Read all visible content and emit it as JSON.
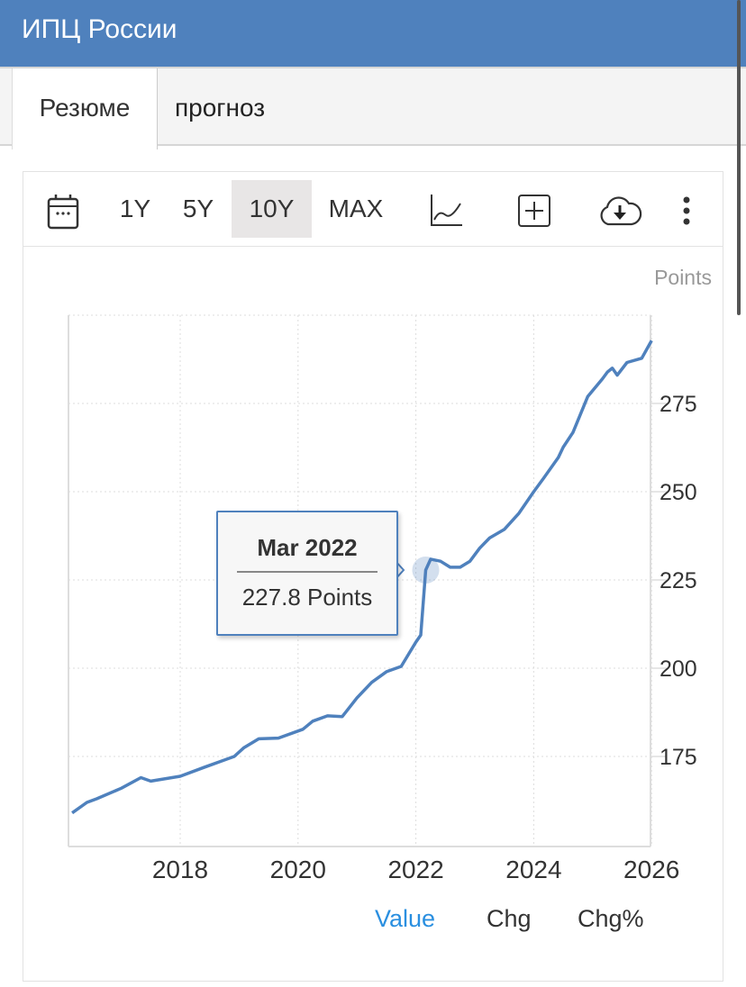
{
  "header": {
    "title": "ИПЦ России",
    "color": "#4f81bd"
  },
  "tabs": [
    {
      "label": "Резюме",
      "active": true
    },
    {
      "label": "прогноз",
      "active": false
    }
  ],
  "toolbar": {
    "ranges": [
      "1Y",
      "5Y",
      "10Y",
      "MAX"
    ],
    "selected": "10Y",
    "icons": [
      "calendar-icon",
      "line-chart-icon",
      "add-compare-icon",
      "cloud-download-icon",
      "more-vertical-icon"
    ]
  },
  "modes": [
    {
      "label": "Value",
      "active": true
    },
    {
      "label": "Chg",
      "active": false
    },
    {
      "label": "Chg%",
      "active": false
    }
  ],
  "tooltip": {
    "date": "Mar 2022",
    "value": "227.8 Points"
  },
  "chart_data": {
    "type": "line",
    "title": "",
    "unit_label": "Points",
    "xlabel": "",
    "ylabel": "",
    "x_ticks": [
      "2018",
      "2020",
      "2022",
      "2024",
      "2026"
    ],
    "y_ticks": [
      175,
      200,
      225,
      250,
      275
    ],
    "ylim": [
      150,
      300
    ],
    "xlim": [
      "2016-03",
      "2026-01"
    ],
    "grid": true,
    "line_color": "#4f81bd",
    "highlight": {
      "x": "2022-03",
      "y": 227.8
    },
    "series": [
      {
        "points": [
          [
            "2016-03",
            159.0
          ],
          [
            "2016-06",
            162.0
          ],
          [
            "2016-08",
            163.0
          ],
          [
            "2017-01",
            166.0
          ],
          [
            "2017-05",
            169.0
          ],
          [
            "2017-07",
            168.0
          ],
          [
            "2018-01",
            169.4
          ],
          [
            "2018-06",
            172.0
          ],
          [
            "2018-12",
            175.0
          ],
          [
            "2019-02",
            177.5
          ],
          [
            "2019-05",
            180.0
          ],
          [
            "2019-09",
            180.2
          ],
          [
            "2020-02",
            182.7
          ],
          [
            "2020-04",
            185.0
          ],
          [
            "2020-07",
            186.5
          ],
          [
            "2020-10",
            186.3
          ],
          [
            "2021-01",
            191.6
          ],
          [
            "2021-04",
            196.0
          ],
          [
            "2021-07",
            199.0
          ],
          [
            "2021-10",
            200.5
          ],
          [
            "2022-01",
            207.4
          ],
          [
            "2022-02",
            209.4
          ],
          [
            "2022-03",
            227.8
          ],
          [
            "2022-04",
            230.9
          ],
          [
            "2022-06",
            230.3
          ],
          [
            "2022-08",
            228.6
          ],
          [
            "2022-10",
            228.6
          ],
          [
            "2022-12",
            230.3
          ],
          [
            "2023-02",
            234.0
          ],
          [
            "2023-04",
            236.9
          ],
          [
            "2023-07",
            239.3
          ],
          [
            "2023-10",
            243.9
          ],
          [
            "2024-01",
            250.0
          ],
          [
            "2024-03",
            253.8
          ],
          [
            "2024-06",
            259.7
          ],
          [
            "2024-07",
            262.6
          ],
          [
            "2024-09",
            266.8
          ],
          [
            "2024-12",
            277.0
          ],
          [
            "2025-03",
            282.0
          ],
          [
            "2025-04",
            283.9
          ],
          [
            "2025-05",
            285.0
          ],
          [
            "2025-06",
            283.0
          ],
          [
            "2025-08",
            286.6
          ],
          [
            "2025-11",
            287.8
          ],
          [
            "2026-01",
            292.8
          ]
        ]
      }
    ]
  }
}
